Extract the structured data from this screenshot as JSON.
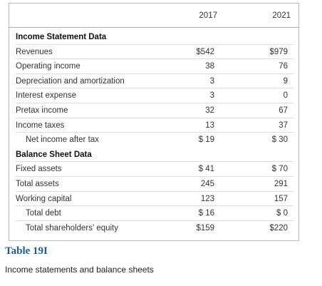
{
  "table": {
    "columns": [
      "2017",
      "2021"
    ],
    "sections": [
      {
        "title": "Income Statement Data",
        "rows": [
          [
            "Revenues",
            "$542",
            "$979"
          ],
          [
            "Operating income",
            "38",
            "76"
          ],
          [
            "Depreciation and amortization",
            "3",
            "9"
          ],
          [
            "Interest expense",
            "3",
            "0"
          ],
          [
            "Pretax income",
            "32",
            "67"
          ],
          [
            "Income taxes",
            "13",
            "37"
          ],
          [
            "Net income after tax",
            "$ 19",
            "$ 30"
          ]
        ]
      },
      {
        "title": "Balance Sheet Data",
        "rows": [
          [
            "Fixed assets",
            "$ 41",
            "$ 70"
          ],
          [
            "Total assets",
            "245",
            "291"
          ],
          [
            "Working capital",
            "123",
            "157"
          ],
          [
            "Total debt",
            "$ 16",
            "$ 0"
          ],
          [
            "Total shareholders’ equity",
            "$159",
            "$220"
          ]
        ]
      }
    ]
  },
  "caption": {
    "label": "Table 19I",
    "text": "Income statements and balance sheets"
  }
}
